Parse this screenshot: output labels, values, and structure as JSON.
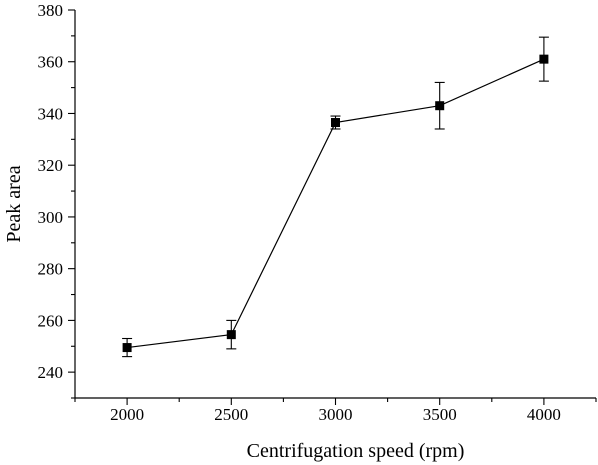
{
  "chart_data": {
    "type": "line",
    "title": "",
    "xlabel": "Centrifugation speed (rpm)",
    "ylabel": "Peak area",
    "x": [
      2000,
      2500,
      3000,
      3500,
      4000
    ],
    "series": [
      {
        "values": [
          249.5,
          254.5,
          336.5,
          343,
          361
        ],
        "errors": [
          3.5,
          5.5,
          2.5,
          9,
          8.5
        ],
        "marker": "square",
        "color": "#000000"
      }
    ],
    "xlim": [
      1750,
      4250
    ],
    "ylim": [
      230,
      380
    ],
    "xticks": [
      2000,
      2500,
      3000,
      3500,
      4000
    ],
    "xtick_labels": [
      "2000",
      "2500",
      "3000",
      "3500",
      "4000"
    ],
    "yticks": [
      240,
      260,
      280,
      300,
      320,
      340,
      360,
      380
    ],
    "ytick_labels": [
      "240",
      "260",
      "280",
      "300",
      "320",
      "340",
      "360",
      "380"
    ],
    "grid": false,
    "legend": "none"
  }
}
